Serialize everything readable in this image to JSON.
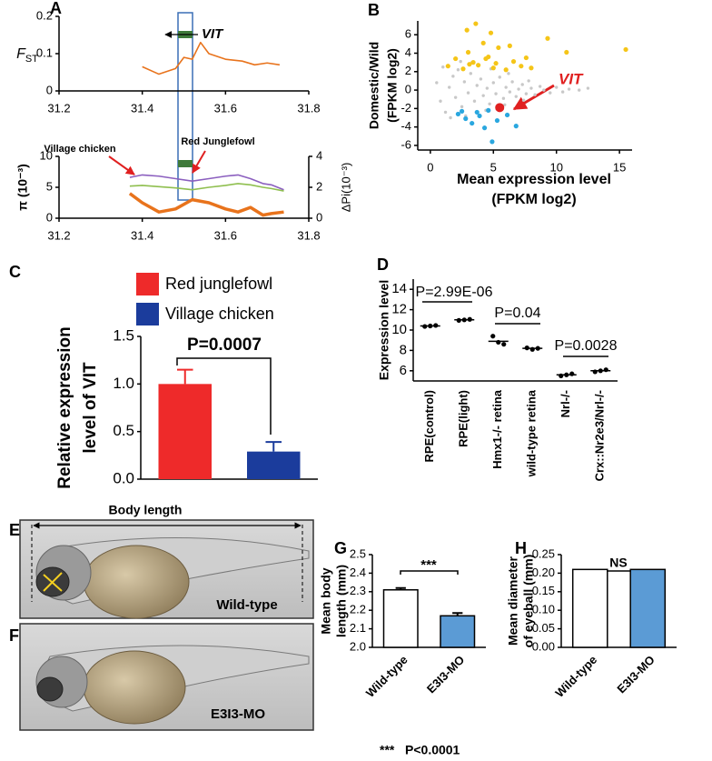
{
  "chart_data": [
    {
      "type": "line",
      "panel": "A",
      "ylabel": "F",
      "ylabel_sub": "ST",
      "x": [
        31.4,
        31.44,
        31.48,
        31.5,
        31.52,
        31.54,
        31.56,
        31.6,
        31.64,
        31.67,
        31.7,
        31.73
      ],
      "series": [
        {
          "color": "#e8731c",
          "values": [
            0.065,
            0.045,
            0.06,
            0.09,
            0.085,
            0.13,
            0.1,
            0.085,
            0.08,
            0.07,
            0.075,
            0.07
          ]
        }
      ],
      "xlim": [
        31.2,
        31.8
      ],
      "xticks": [
        31.2,
        31.4,
        31.6,
        31.8
      ],
      "ylim": [
        0,
        0.2
      ],
      "yticks": [
        0,
        0.1,
        0.2
      ],
      "annotations": [
        "VIT"
      ]
    },
    {
      "type": "line",
      "ylabel": "π (10⁻³)",
      "y2label": "ΔPi(10⁻³)",
      "x": [
        31.37,
        31.4,
        31.44,
        31.48,
        31.52,
        31.56,
        31.6,
        31.63,
        31.66,
        31.69,
        31.71,
        31.74
      ],
      "series": [
        {
          "color": "#8b5fbf",
          "values": [
            6.6,
            7,
            6.8,
            6.4,
            6,
            6.4,
            6.8,
            7,
            6.4,
            5.6,
            5.4,
            4.6
          ]
        },
        {
          "color": "#8fbf4f",
          "values": [
            5.2,
            5.3,
            5.1,
            4.9,
            4.6,
            5,
            5.3,
            5.6,
            5.4,
            5,
            4.8,
            4.4
          ]
        },
        {
          "color": "#e8731c",
          "axis": "y2",
          "values": [
            1.6,
            1.0,
            0.4,
            0.6,
            1.2,
            1.0,
            0.6,
            0.4,
            0.7,
            0.2,
            0.3,
            0.4
          ]
        }
      ],
      "xlim": [
        31.2,
        31.8
      ],
      "xticks": [
        31.2,
        31.4,
        31.6,
        31.8
      ],
      "ylim": [
        0,
        10
      ],
      "yticks": [
        0,
        5,
        10
      ],
      "y2lim": [
        0,
        4
      ],
      "y2ticks": [
        0,
        2,
        4
      ],
      "annotations": [
        "Village chicken",
        "Red Junglefowl"
      ]
    },
    {
      "type": "scatter",
      "panel": "B",
      "xlabel": [
        "Mean expression level",
        "(FPKM log2)"
      ],
      "ylabel": [
        "Domestic/Wild",
        "(FPKM log2)"
      ],
      "series": [
        {
          "color": "#c8c8c8",
          "x": [
            0.5,
            0.8,
            1,
            1.2,
            1.5,
            1.8,
            2,
            2.2,
            2.5,
            2.7,
            3,
            3.2,
            3.5,
            3.7,
            4,
            4.2,
            4.5,
            4.7,
            5,
            5.2,
            5.5,
            5.8,
            6,
            6.3,
            6.5,
            6.8,
            7,
            7.3,
            7.6,
            8,
            8.3,
            8.7,
            9,
            9.5,
            10,
            10.5,
            11,
            11.8,
            12.5,
            3.3,
            2.8,
            4.8,
            4.4,
            6.2,
            5.9,
            1.6,
            2.4,
            7.8,
            7.4
          ],
          "values": [
            0.8,
            -1.2,
            2.5,
            -2.4,
            0.3,
            1.5,
            -0.8,
            2.2,
            -1.8,
            0.9,
            -0.3,
            1.8,
            -1.2,
            0.5,
            1.2,
            -0.6,
            0.2,
            -1.5,
            0.8,
            -0.4,
            1.4,
            -0.9,
            0.3,
            -0.2,
            0.9,
            -0.7,
            0.1,
            0.6,
            -0.4,
            0.2,
            -0.5,
            0.4,
            0,
            -0.3,
            0.3,
            -0.2,
            0.1,
            0,
            0.2,
            3,
            -2.8,
            2.3,
            -2.2,
            1.8,
            -1.6,
            -3,
            3.1,
            1,
            -1.1
          ]
        },
        {
          "color": "#f5c518",
          "x": [
            1.4,
            2,
            2.6,
            3,
            3.4,
            3.8,
            4.2,
            4.6,
            5,
            5.4,
            6,
            6.6,
            7.2,
            8,
            9.3,
            10.8,
            15.5,
            3.6,
            4.4,
            5.2,
            2.9,
            6.3,
            3.1,
            4.8,
            7.6
          ],
          "values": [
            2.6,
            3.4,
            2.3,
            4.1,
            3,
            2.7,
            5.1,
            3.6,
            2.4,
            4.6,
            2.2,
            3.1,
            2.6,
            2.4,
            5.6,
            4.1,
            4.4,
            7.2,
            3.4,
            2.9,
            6.5,
            4.8,
            2.8,
            6.2,
            3.5
          ]
        },
        {
          "color": "#2aa7df",
          "x": [
            2.2,
            2.8,
            3.3,
            3.9,
            4.3,
            4.9,
            5.3,
            6.1,
            6.8,
            3.7,
            4.6,
            2.5
          ],
          "values": [
            -2.6,
            -3.1,
            -3.6,
            -2.8,
            -4.1,
            -5.6,
            -3.3,
            -2.7,
            -3.9,
            -2.4,
            -2.2,
            -2.3
          ]
        },
        {
          "color": "#e02020",
          "x": [
            5.5
          ],
          "values": [
            -1.9
          ]
        }
      ],
      "xlim": [
        -1,
        16
      ],
      "xticks": [
        0,
        5,
        10,
        15
      ],
      "ylim": [
        -6.5,
        7.5
      ],
      "yticks": [
        -6,
        -4,
        -2,
        0,
        2,
        4,
        6
      ],
      "annotations": [
        "VIT"
      ]
    },
    {
      "type": "bar",
      "panel": "C",
      "ylabel": [
        "Relative expression",
        "level of VIT"
      ],
      "categories": [
        null
      ],
      "series": [
        {
          "name": "Red junglefowl",
          "color": "#ee2a2a",
          "values": [
            1.0
          ],
          "errors": [
            0.15
          ]
        },
        {
          "name": "Village chicken",
          "color": "#1b3c9c",
          "values": [
            0.29
          ],
          "errors": [
            0.1
          ]
        }
      ],
      "ylim": [
        0,
        1.5
      ],
      "yticks": [
        {
          "value": 0,
          "label": "0.0"
        },
        0.5,
        {
          "value": 1,
          "label": "1.0"
        },
        1.5
      ],
      "annotations": [
        "P=0.0007"
      ]
    },
    {
      "type": "dot",
      "panel": "D",
      "ylabel": "Expression level",
      "categories": [
        "RPE(control)",
        "RPE(light)",
        "Hmx1-/- retina",
        "wild-type retina",
        "Nrl-/-",
        "Crx::Nr2e3/Nrl-/-"
      ],
      "points": [
        [
          10.35,
          10.4,
          10.45
        ],
        [
          10.95,
          11.0,
          11.05
        ],
        [
          9.4,
          8.8,
          8.6
        ],
        [
          8.25,
          8.1,
          8.2
        ],
        [
          5.5,
          5.6,
          5.7
        ],
        [
          5.9,
          6.0,
          6.1
        ]
      ],
      "means": [
        10.4,
        11.0,
        8.9,
        8.2,
        5.6,
        6.0
      ],
      "ylim": [
        5,
        15
      ],
      "yticks": [
        6,
        8,
        10,
        12,
        14
      ],
      "annotations": [
        "P=2.99E-06",
        "P=0.04",
        "P=0.0028"
      ]
    },
    {
      "type": "bar",
      "panel": "G",
      "ylabel": [
        "Mean body",
        "length (mm)"
      ],
      "categories": [
        "Wild-type",
        "E3I3-MO"
      ],
      "values": [
        2.31,
        2.17
      ],
      "errors": [
        0.01,
        0.015
      ],
      "colors": [
        "#ffffff",
        "#5b9bd5"
      ],
      "ylim": [
        2.0,
        2.5
      ],
      "yticks": [
        {
          "value": 2,
          "label": "2.0"
        },
        2.1,
        2.2,
        2.3,
        2.4,
        2.5
      ],
      "annotations": [
        "***",
        "***   P<0.0001"
      ]
    },
    {
      "type": "bar",
      "panel": "H",
      "ylabel": [
        "Mean diameter",
        "of eyeball (mm)"
      ],
      "categories": [
        "Wild-type",
        "E3I3-MO"
      ],
      "values": [
        0.21,
        0.21
      ],
      "colors": [
        "#ffffff",
        "#5b9bd5"
      ],
      "ylim": [
        0,
        0.25
      ],
      "yticks": [
        {
          "value": 0,
          "label": "0.00"
        },
        0.05,
        {
          "value": 0.1,
          "label": "0.10"
        },
        0.15,
        {
          "value": 0.2,
          "label": "0.20"
        },
        0.25
      ],
      "annotations": [
        "NS"
      ]
    }
  ],
  "images": [
    {
      "panel": "E",
      "measure": "Body length",
      "caption": "Wild-type"
    },
    {
      "panel": "F",
      "caption": "E3I3-MO"
    }
  ]
}
